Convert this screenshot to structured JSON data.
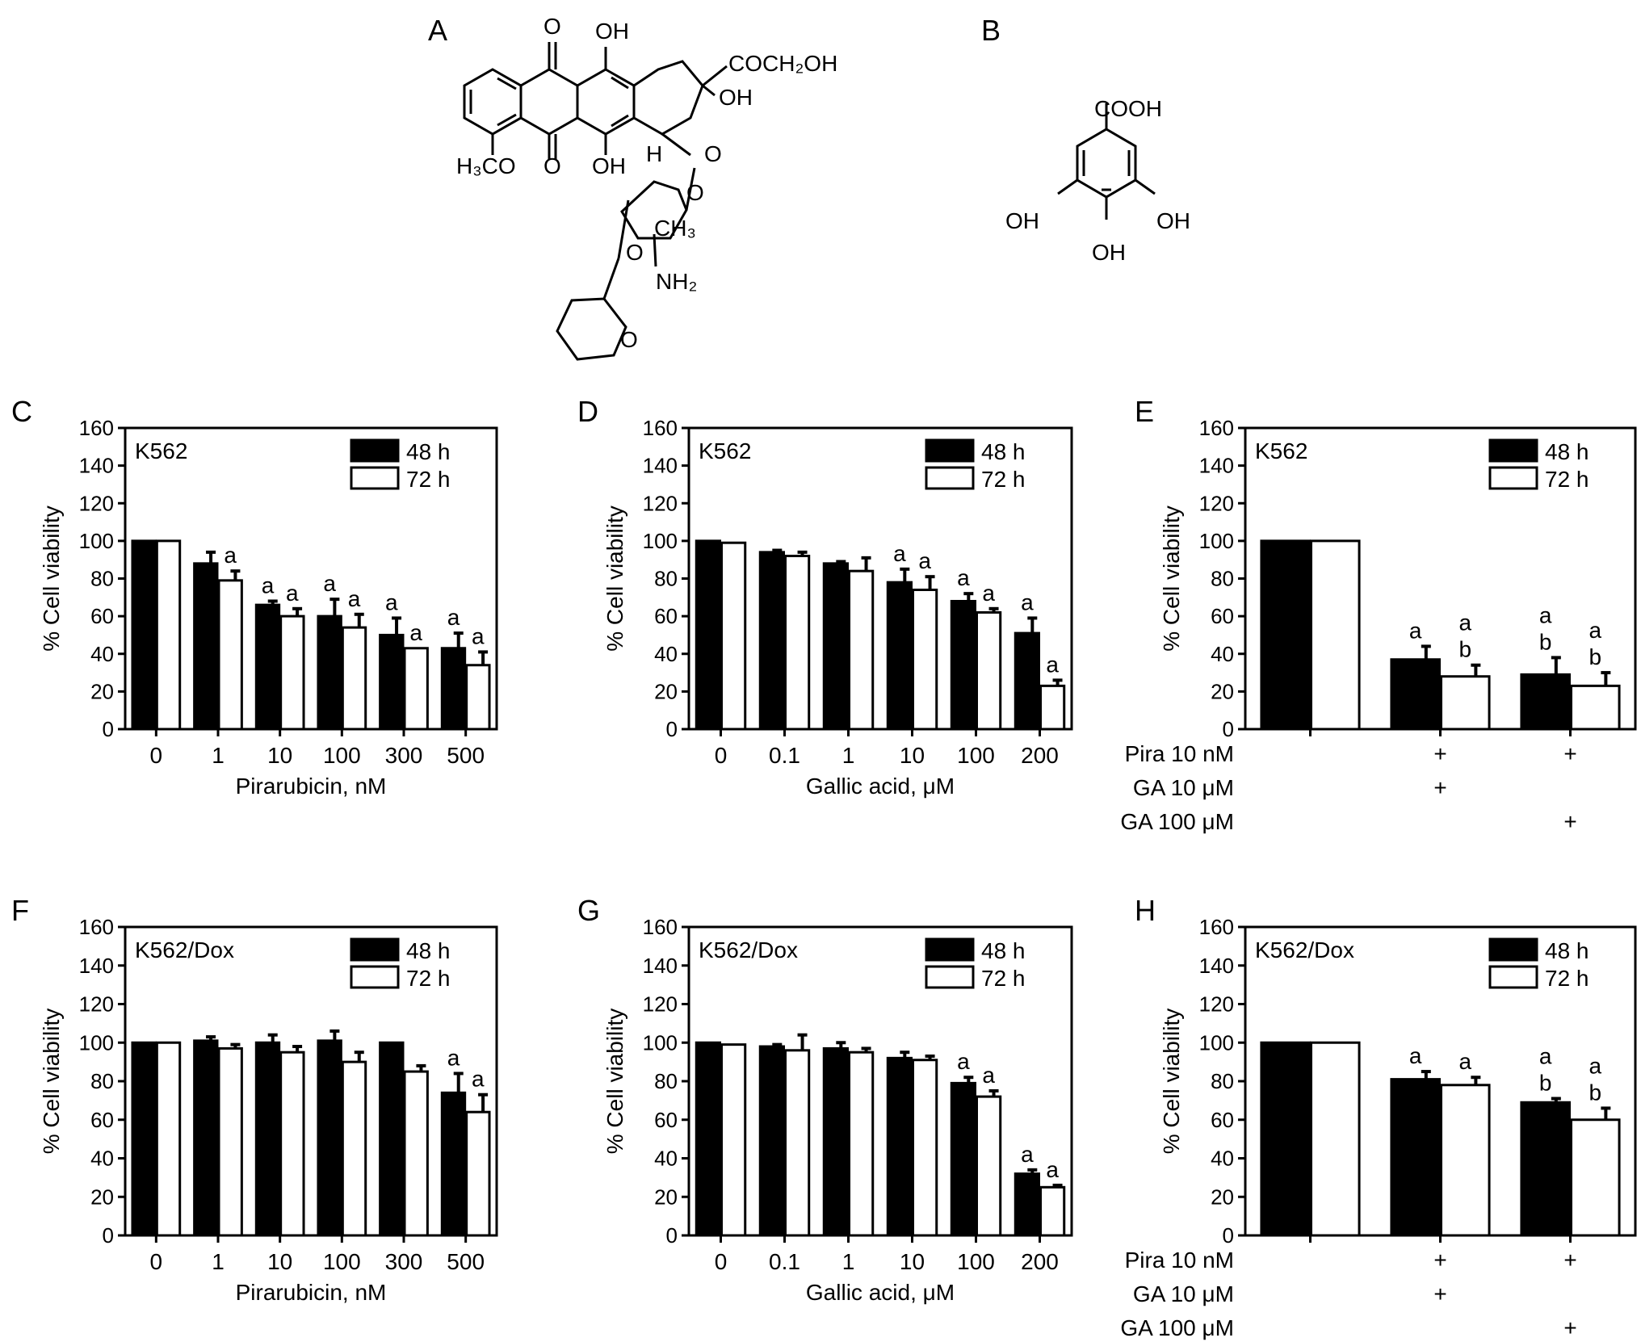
{
  "structures": {
    "A": {
      "panel_letter": "A",
      "cooh_group": "COCH₂OH",
      "oxo_top": "O",
      "oh_top": "OH",
      "oh_ring": "OH",
      "methoxy": "H₃CO",
      "oxo_bottom": "O",
      "oh_bottom": "OH",
      "h_label": "H",
      "o_link": "O",
      "o_sugar": "O",
      "ch3": "CH₃",
      "o_thp_link": "O",
      "nh2": "NH₂",
      "o_thp": "O"
    },
    "B": {
      "panel_letter": "B",
      "cooh": "COOH",
      "oh_left": "OH",
      "oh_right": "OH",
      "oh_bottom": "OH"
    }
  },
  "colors": {
    "bar_48h": "#000000",
    "bar_72h": "#ffffff",
    "stroke": "#000000"
  },
  "chart_data": [
    {
      "panel": "C",
      "type": "bar",
      "cell_line": "K562",
      "categories": [
        "0",
        "1",
        "10",
        "100",
        "300",
        "500"
      ],
      "xlabel": "Pirarubicin, nM",
      "ylabel": "% Cell viability",
      "ylim": [
        0,
        160
      ],
      "yticks": [
        "0",
        "20",
        "40",
        "60",
        "80",
        "100",
        "120",
        "140",
        "160"
      ],
      "legend": [
        "48 h",
        "72 h"
      ],
      "legend_placement": "top-right",
      "grid": false,
      "series": [
        {
          "name": "48 h",
          "values": [
            100,
            88,
            66,
            60,
            50,
            43
          ],
          "errors": [
            0,
            6,
            2,
            9,
            9,
            8
          ],
          "labels": [
            "",
            "",
            "a",
            "a",
            "a",
            "a"
          ]
        },
        {
          "name": "72 h",
          "values": [
            100,
            79,
            60,
            54,
            43,
            34
          ],
          "errors": [
            0,
            5,
            4,
            7,
            0,
            7
          ],
          "labels": [
            "",
            "a",
            "a",
            "a",
            "a",
            "a"
          ]
        }
      ]
    },
    {
      "panel": "D",
      "type": "bar",
      "cell_line": "K562",
      "categories": [
        "0",
        "0.1",
        "1",
        "10",
        "100",
        "200"
      ],
      "xlabel": "Gallic acid, μM",
      "ylabel": "% Cell viability",
      "ylim": [
        0,
        160
      ],
      "yticks": [
        "0",
        "20",
        "40",
        "60",
        "80",
        "100",
        "120",
        "140",
        "160"
      ],
      "legend": [
        "48 h",
        "72 h"
      ],
      "legend_placement": "top-right",
      "grid": false,
      "series": [
        {
          "name": "48 h",
          "values": [
            100,
            94,
            88,
            78,
            68,
            51
          ],
          "errors": [
            0,
            1,
            1,
            7,
            4,
            8
          ],
          "labels": [
            "",
            "",
            "",
            "a",
            "a",
            "a"
          ]
        },
        {
          "name": "72 h",
          "values": [
            99,
            92,
            84,
            74,
            62,
            23
          ],
          "errors": [
            0,
            2,
            7,
            7,
            2,
            3
          ],
          "labels": [
            "",
            "",
            "",
            "a",
            "a",
            "a"
          ]
        }
      ]
    },
    {
      "panel": "E",
      "type": "bar",
      "cell_line": "K562",
      "categories": [
        "",
        "",
        ""
      ],
      "treatments": [
        {
          "label": "Pira 10 nM",
          "marks": [
            "",
            "+",
            "+"
          ]
        },
        {
          "label": "GA 10 μM",
          "marks": [
            "",
            "+",
            ""
          ]
        },
        {
          "label": "GA 100 μM",
          "marks": [
            "",
            "",
            "+"
          ]
        }
      ],
      "xlabel": "",
      "ylabel": "% Cell viability",
      "ylim": [
        0,
        160
      ],
      "yticks": [
        "0",
        "20",
        "40",
        "60",
        "80",
        "100",
        "120",
        "140",
        "160"
      ],
      "legend": [
        "48 h",
        "72 h"
      ],
      "legend_placement": "top-right",
      "grid": false,
      "series": [
        {
          "name": "48 h",
          "values": [
            100,
            37,
            29
          ],
          "errors": [
            0,
            7,
            9
          ],
          "labels": [
            "",
            "a",
            "a\nb"
          ]
        },
        {
          "name": "72 h",
          "values": [
            100,
            28,
            23
          ],
          "errors": [
            0,
            6,
            7
          ],
          "labels": [
            "",
            "a\nb",
            "a\nb"
          ]
        }
      ]
    },
    {
      "panel": "F",
      "type": "bar",
      "cell_line": "K562/Dox",
      "categories": [
        "0",
        "1",
        "10",
        "100",
        "300",
        "500"
      ],
      "xlabel": "Pirarubicin, nM",
      "ylabel": "% Cell viability",
      "ylim": [
        0,
        160
      ],
      "yticks": [
        "0",
        "20",
        "40",
        "60",
        "80",
        "100",
        "120",
        "140",
        "160"
      ],
      "legend": [
        "48 h",
        "72 h"
      ],
      "legend_placement": "top-right",
      "grid": false,
      "series": [
        {
          "name": "48 h",
          "values": [
            100,
            101,
            100,
            101,
            100,
            74
          ],
          "errors": [
            0,
            2,
            4,
            5,
            0,
            10
          ],
          "labels": [
            "",
            "",
            "",
            "",
            "",
            "a"
          ]
        },
        {
          "name": "72 h",
          "values": [
            100,
            97,
            95,
            90,
            85,
            64
          ],
          "errors": [
            0,
            2,
            3,
            5,
            3,
            9
          ],
          "labels": [
            "",
            "",
            "",
            "",
            "",
            "a"
          ]
        }
      ]
    },
    {
      "panel": "G",
      "type": "bar",
      "cell_line": "K562/Dox",
      "categories": [
        "0",
        "0.1",
        "1",
        "10",
        "100",
        "200"
      ],
      "xlabel": "Gallic acid, μM",
      "ylabel": "% Cell viability",
      "ylim": [
        0,
        160
      ],
      "yticks": [
        "0",
        "20",
        "40",
        "60",
        "80",
        "100",
        "120",
        "140",
        "160"
      ],
      "legend": [
        "48 h",
        "72 h"
      ],
      "legend_placement": "top-right",
      "grid": false,
      "series": [
        {
          "name": "48 h",
          "values": [
            100,
            98,
            97,
            92,
            79,
            32
          ],
          "errors": [
            0,
            1,
            3,
            3,
            3,
            2
          ],
          "labels": [
            "",
            "",
            "",
            "",
            "a",
            "a"
          ]
        },
        {
          "name": "72 h",
          "values": [
            99,
            96,
            95,
            91,
            72,
            25
          ],
          "errors": [
            0,
            8,
            2,
            2,
            3,
            1
          ],
          "labels": [
            "",
            "",
            "",
            "",
            "a",
            "a"
          ]
        }
      ]
    },
    {
      "panel": "H",
      "type": "bar",
      "cell_line": "K562/Dox",
      "categories": [
        "",
        "",
        ""
      ],
      "treatments": [
        {
          "label": "Pira 10 nM",
          "marks": [
            "",
            "+",
            "+"
          ]
        },
        {
          "label": "GA 10 μM",
          "marks": [
            "",
            "+",
            ""
          ]
        },
        {
          "label": "GA 100 μM",
          "marks": [
            "",
            "",
            "+"
          ]
        }
      ],
      "xlabel": "",
      "ylabel": "% Cell viability",
      "ylim": [
        0,
        160
      ],
      "yticks": [
        "0",
        "20",
        "40",
        "60",
        "80",
        "100",
        "120",
        "140",
        "160"
      ],
      "legend": [
        "48 h",
        "72 h"
      ],
      "legend_placement": "top-right",
      "grid": false,
      "series": [
        {
          "name": "48 h",
          "values": [
            100,
            81,
            69
          ],
          "errors": [
            0,
            4,
            2
          ],
          "labels": [
            "",
            "a",
            "a\nb"
          ]
        },
        {
          "name": "72 h",
          "values": [
            100,
            78,
            60
          ],
          "errors": [
            0,
            4,
            6
          ],
          "labels": [
            "",
            "a",
            "a\nb"
          ]
        }
      ]
    }
  ]
}
